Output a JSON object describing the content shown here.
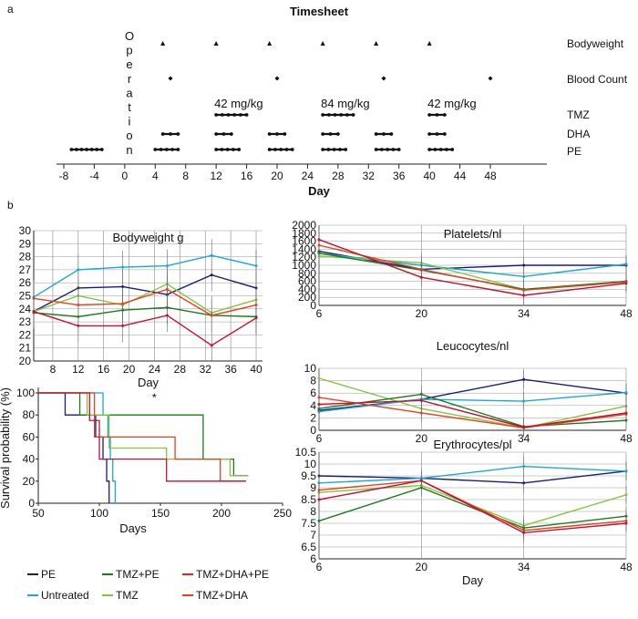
{
  "panel_labels": {
    "a": "a",
    "b": "b"
  },
  "legend": [
    {
      "name": "PE",
      "color": "#1b1a7a"
    },
    {
      "name": "TMZ+PE",
      "color": "#1d7a1d"
    },
    {
      "name": "TMZ+DHA+PE",
      "color": "#f02020"
    },
    {
      "name": "Untreated",
      "color": "#17a9d8"
    },
    {
      "name": "TMZ",
      "color": "#86c440"
    },
    {
      "name": "TMZ+DHA",
      "color": "#e8401c"
    }
  ],
  "chart_data": [
    {
      "id": "timesheet",
      "type": "timeline",
      "title": "Timesheet",
      "xlabel": "Day",
      "xlim": [
        -8,
        48
      ],
      "xticks": [
        -8,
        -4,
        0,
        4,
        8,
        12,
        16,
        20,
        24,
        28,
        32,
        36,
        40,
        44,
        48
      ],
      "operation_label": [
        "O",
        "p",
        "e",
        "r",
        "a",
        "t",
        "i",
        "o",
        "n"
      ],
      "row_labels": [
        "Bodyweight",
        "Blood Count",
        "TMZ",
        "DHA",
        "PE"
      ],
      "bodyweight_days": [
        5,
        12,
        19,
        26,
        33,
        40
      ],
      "bloodcount_days": [
        6,
        20,
        34,
        48
      ],
      "tmz_segments": [
        {
          "start": 12,
          "end": 16,
          "points": 6
        },
        {
          "start": 26,
          "end": 30,
          "points": 6
        },
        {
          "start": 40,
          "end": 42,
          "points": 3
        }
      ],
      "tmz_doses": [
        "42 mg/kg",
        "84 mg/kg",
        "42 mg/kg"
      ],
      "dha_segments": [
        {
          "start": 5,
          "end": 7,
          "points": 3
        },
        {
          "start": 12,
          "end": 14,
          "points": 3
        },
        {
          "start": 19,
          "end": 21,
          "points": 3
        },
        {
          "start": 26,
          "end": 28,
          "points": 3
        },
        {
          "start": 33,
          "end": 35,
          "points": 3
        },
        {
          "start": 40,
          "end": 42,
          "points": 3
        }
      ],
      "pe_segments": [
        {
          "start": -7,
          "end": -3,
          "points": 7
        },
        {
          "start": 4,
          "end": 7,
          "points": 5
        },
        {
          "start": 12,
          "end": 15,
          "points": 5
        },
        {
          "start": 19,
          "end": 22,
          "points": 5
        },
        {
          "start": 26,
          "end": 29,
          "points": 5
        },
        {
          "start": 33,
          "end": 36,
          "points": 5
        },
        {
          "start": 40,
          "end": 43,
          "points": 5
        }
      ]
    },
    {
      "id": "bodyweight",
      "type": "line",
      "title": "Bodyweight  g",
      "xlabel": "Day",
      "x": [
        5,
        12,
        19,
        26,
        33,
        40
      ],
      "xlim": [
        5,
        41
      ],
      "xticks": [
        8,
        12,
        16,
        20,
        24,
        28,
        32,
        36,
        40
      ],
      "ylim": [
        20,
        30
      ],
      "yticks": [
        20,
        21,
        22,
        23,
        24,
        25,
        26,
        27,
        28,
        29,
        30
      ],
      "series": [
        {
          "name": "PE",
          "color": "#1b1a7a",
          "values": [
            23.8,
            25.6,
            25.7,
            25.1,
            26.6,
            25.6
          ]
        },
        {
          "name": "Untreated",
          "color": "#17a9d8",
          "values": [
            24.9,
            27.0,
            27.2,
            27.3,
            28.1,
            27.3
          ]
        },
        {
          "name": "TMZ",
          "color": "#86c440",
          "values": [
            23.8,
            25.0,
            24.3,
            25.9,
            23.7,
            24.7
          ]
        },
        {
          "name": "TMZ+PE",
          "color": "#1d7a1d",
          "values": [
            23.7,
            23.4,
            23.9,
            24.1,
            23.5,
            23.4
          ]
        },
        {
          "name": "TMZ+DHA",
          "color": "#e8401c",
          "values": [
            24.8,
            24.3,
            24.4,
            25.5,
            23.5,
            24.3
          ]
        },
        {
          "name": "TMZ+DHA+PE",
          "color": "#c8102e",
          "values": [
            23.8,
            22.7,
            22.7,
            23.5,
            21.2,
            23.3
          ]
        }
      ]
    },
    {
      "id": "survival",
      "type": "step",
      "xlabel": "Days",
      "ylabel": "Survival probability (%)",
      "xlim": [
        50,
        250
      ],
      "xticks": [
        50,
        100,
        150,
        200,
        250
      ],
      "ylim": [
        0,
        100
      ],
      "yticks": [
        0,
        20,
        40,
        60,
        80,
        100
      ],
      "annotation": "*",
      "series": [
        {
          "name": "PE",
          "color": "#1b1a7a",
          "points": [
            [
              50,
              100
            ],
            [
              72,
              100
            ],
            [
              72,
              80
            ],
            [
              97,
              80
            ],
            [
              97,
              60
            ],
            [
              103,
              60
            ],
            [
              103,
              40
            ],
            [
              106,
              40
            ],
            [
              106,
              20
            ],
            [
              108,
              20
            ],
            [
              108,
              0
            ]
          ]
        },
        {
          "name": "Untreated",
          "color": "#17a9d8",
          "points": [
            [
              50,
              100
            ],
            [
              103,
              100
            ],
            [
              103,
              80
            ],
            [
              107,
              80
            ],
            [
              107,
              60
            ],
            [
              109,
              60
            ],
            [
              109,
              40
            ],
            [
              111,
              40
            ],
            [
              111,
              20
            ],
            [
              113,
              20
            ],
            [
              113,
              0
            ]
          ]
        },
        {
          "name": "TMZ+PE",
          "color": "#1d7a1d",
          "points": [
            [
              50,
              100
            ],
            [
              84,
              100
            ],
            [
              84,
              80
            ],
            [
              185,
              80
            ],
            [
              185,
              40
            ],
            [
              210,
              40
            ],
            [
              210,
              25
            ],
            [
              222,
              25
            ]
          ]
        },
        {
          "name": "TMZ",
          "color": "#86c440",
          "points": [
            [
              50,
              100
            ],
            [
              90,
              100
            ],
            [
              90,
              80
            ],
            [
              108,
              80
            ],
            [
              108,
              50
            ],
            [
              155,
              50
            ],
            [
              155,
              40
            ],
            [
              207,
              40
            ],
            [
              207,
              25
            ],
            [
              222,
              25
            ]
          ]
        },
        {
          "name": "TMZ+DHA",
          "color": "#e8401c",
          "points": [
            [
              50,
              100
            ],
            [
              96,
              100
            ],
            [
              96,
              60
            ],
            [
              162,
              60
            ],
            [
              162,
              40
            ],
            [
              199,
              40
            ],
            [
              199,
              20
            ],
            [
              220,
              20
            ]
          ]
        },
        {
          "name": "TMZ+DHA+PE",
          "color": "#c8102e",
          "points": [
            [
              50,
              100
            ],
            [
              92,
              100
            ],
            [
              92,
              75
            ],
            [
              100,
              75
            ],
            [
              100,
              40
            ],
            [
              155,
              40
            ],
            [
              155,
              20
            ],
            [
              220,
              20
            ]
          ]
        }
      ]
    },
    {
      "id": "platelets",
      "type": "line",
      "title": "Platelets/nl",
      "x": [
        6,
        20,
        34,
        48
      ],
      "xlim": [
        6,
        48
      ],
      "xticks": [
        6,
        20,
        34,
        48
      ],
      "ylim": [
        0,
        2000
      ],
      "yticks": [
        0,
        200,
        400,
        600,
        800,
        1000,
        1200,
        1400,
        1600,
        1800,
        2000
      ],
      "series": [
        {
          "name": "PE",
          "color": "#1b1a7a",
          "values": [
            1350,
            900,
            1000,
            1000
          ]
        },
        {
          "name": "Untreated",
          "color": "#17a9d8",
          "values": [
            1300,
            1000,
            720,
            1030
          ]
        },
        {
          "name": "TMZ",
          "color": "#86c440",
          "values": [
            1230,
            1060,
            400,
            600
          ]
        },
        {
          "name": "TMZ+PE",
          "color": "#1d7a1d",
          "values": [
            1300,
            880,
            400,
            600
          ]
        },
        {
          "name": "TMZ+DHA",
          "color": "#e8401c",
          "values": [
            1500,
            900,
            380,
            580
          ]
        },
        {
          "name": "TMZ+DHA+PE",
          "color": "#c8102e",
          "values": [
            1640,
            700,
            250,
            550
          ]
        }
      ]
    },
    {
      "id": "leucocytes",
      "type": "line",
      "title": "Leucocytes/nl",
      "x": [
        6,
        20,
        34,
        48
      ],
      "xlim": [
        6,
        48
      ],
      "xticks": [
        6,
        20,
        34,
        48
      ],
      "ylim": [
        0,
        10
      ],
      "yticks": [
        0,
        2,
        4,
        6,
        8,
        10
      ],
      "series": [
        {
          "name": "PE",
          "color": "#1b1a7a",
          "values": [
            3.2,
            5.0,
            8.2,
            6.0
          ]
        },
        {
          "name": "Untreated",
          "color": "#17a9d8",
          "values": [
            3.0,
            5.0,
            4.7,
            6.1
          ]
        },
        {
          "name": "TMZ",
          "color": "#86c440",
          "values": [
            8.4,
            3.5,
            0.4,
            3.9
          ]
        },
        {
          "name": "TMZ+PE",
          "color": "#1d7a1d",
          "values": [
            3.5,
            5.8,
            0.6,
            1.6
          ]
        },
        {
          "name": "TMZ+DHA",
          "color": "#e8401c",
          "values": [
            5.3,
            2.8,
            0.4,
            2.6
          ]
        },
        {
          "name": "TMZ+DHA+PE",
          "color": "#c8102e",
          "values": [
            4.2,
            4.8,
            0.5,
            2.8
          ]
        }
      ]
    },
    {
      "id": "erythrocytes",
      "type": "line",
      "title": "Erythrocytes/pl",
      "xlabel": "Day",
      "x": [
        6,
        20,
        34,
        48
      ],
      "xlim": [
        6,
        48
      ],
      "xticks": [
        6,
        20,
        34,
        48
      ],
      "ylim": [
        6,
        10.5
      ],
      "yticks": [
        6,
        6.5,
        7,
        7.5,
        8,
        8.5,
        9,
        9.5,
        10,
        10.5
      ],
      "ytick_labels": [
        "6",
        "6.5",
        "7",
        "7.5",
        "8",
        "8.5",
        "9",
        "9.5",
        "10",
        "10.5"
      ],
      "series": [
        {
          "name": "PE",
          "color": "#1b1a7a",
          "values": [
            9.5,
            9.4,
            9.2,
            9.7
          ]
        },
        {
          "name": "Untreated",
          "color": "#17a9d8",
          "values": [
            9.2,
            9.4,
            9.9,
            9.7
          ]
        },
        {
          "name": "TMZ",
          "color": "#86c440",
          "values": [
            8.8,
            9.1,
            7.4,
            8.7
          ]
        },
        {
          "name": "TMZ+PE",
          "color": "#1d7a1d",
          "values": [
            7.6,
            9.0,
            7.3,
            7.8
          ]
        },
        {
          "name": "TMZ+DHA",
          "color": "#e8401c",
          "values": [
            8.9,
            9.3,
            7.2,
            7.6
          ]
        },
        {
          "name": "TMZ+DHA+PE",
          "color": "#c8102e",
          "values": [
            8.5,
            9.3,
            7.1,
            7.5
          ]
        }
      ]
    }
  ]
}
